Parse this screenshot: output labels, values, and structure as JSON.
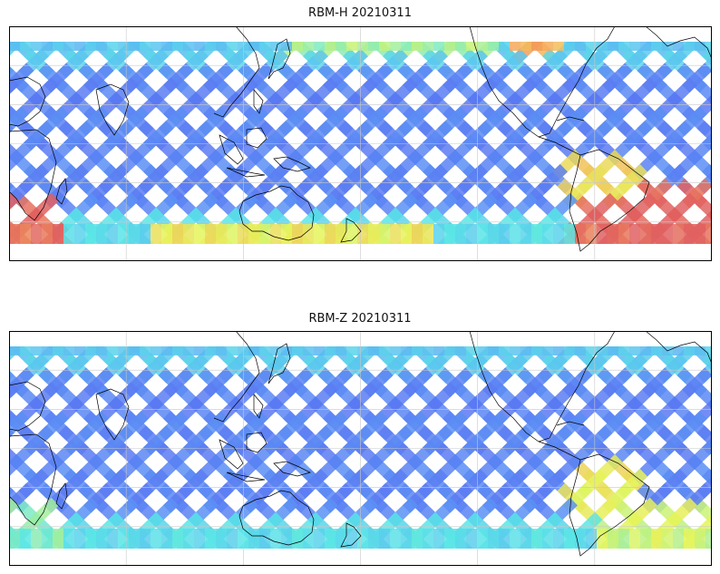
{
  "panels": [
    {
      "title": "RBM-H 20210311",
      "variable": "RBM-H",
      "date": "20210311",
      "colormap": "jet",
      "highlight_regions": [
        "southern-atlantic-hotspot",
        "southern-indian-ocean-hotspot",
        "north-pacific-band"
      ]
    },
    {
      "title": "RBM-Z 20210311",
      "variable": "RBM-Z",
      "date": "20210311",
      "colormap": "jet",
      "highlight_regions": [
        "south-america-hotspot"
      ]
    }
  ],
  "map": {
    "projection": "plate-carree",
    "central_longitude": 180,
    "lat_range": [
      -90,
      90
    ],
    "gridlines": true,
    "coastlines": true
  },
  "colors": {
    "low": "#5a5af0",
    "mid_low": "#5aa6f5",
    "mid": "#5ae6e6",
    "mid_high": "#e6f55a",
    "high": "#f5a65a",
    "max": "#e06060",
    "coastline": "#000000",
    "grid": "#c8c8c8"
  }
}
